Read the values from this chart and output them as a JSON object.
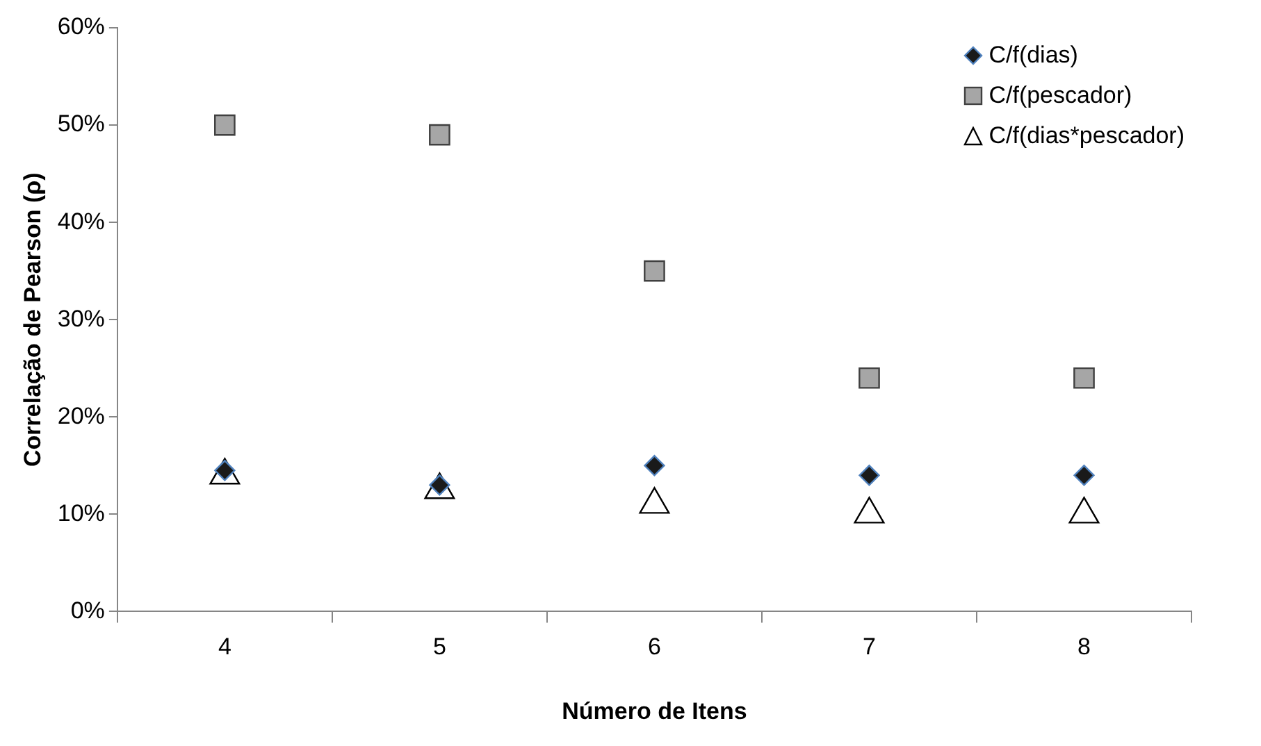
{
  "chart_data": {
    "type": "scatter",
    "xlabel": "Número de Itens",
    "ylabel": "Correlação de Pearson (ρ)",
    "categories": [
      "4",
      "5",
      "6",
      "7",
      "8"
    ],
    "ylim": [
      0,
      60
    ],
    "yticks": [
      {
        "value": 0,
        "label": "0%"
      },
      {
        "value": 10,
        "label": "10%"
      },
      {
        "value": 20,
        "label": "20%"
      },
      {
        "value": 30,
        "label": "30%"
      },
      {
        "value": 40,
        "label": "40%"
      },
      {
        "value": 50,
        "label": "50%"
      },
      {
        "value": 60,
        "label": "60%"
      }
    ],
    "grid": false,
    "legend": "top right",
    "series": [
      {
        "name": "C/f(dias)",
        "color": "#1a1a1a",
        "marker": "diamond",
        "values": [
          14.5,
          13,
          15,
          14,
          14
        ]
      },
      {
        "name": "C/f(pescador)",
        "color": "#a6a6a6",
        "marker": "square",
        "values": [
          50,
          49,
          35,
          24,
          24
        ]
      },
      {
        "name": "C/f(dias*pescador)",
        "color": "#ffffff",
        "marker": "triangle",
        "values": [
          14,
          12.5,
          11,
          10,
          10
        ]
      }
    ]
  }
}
